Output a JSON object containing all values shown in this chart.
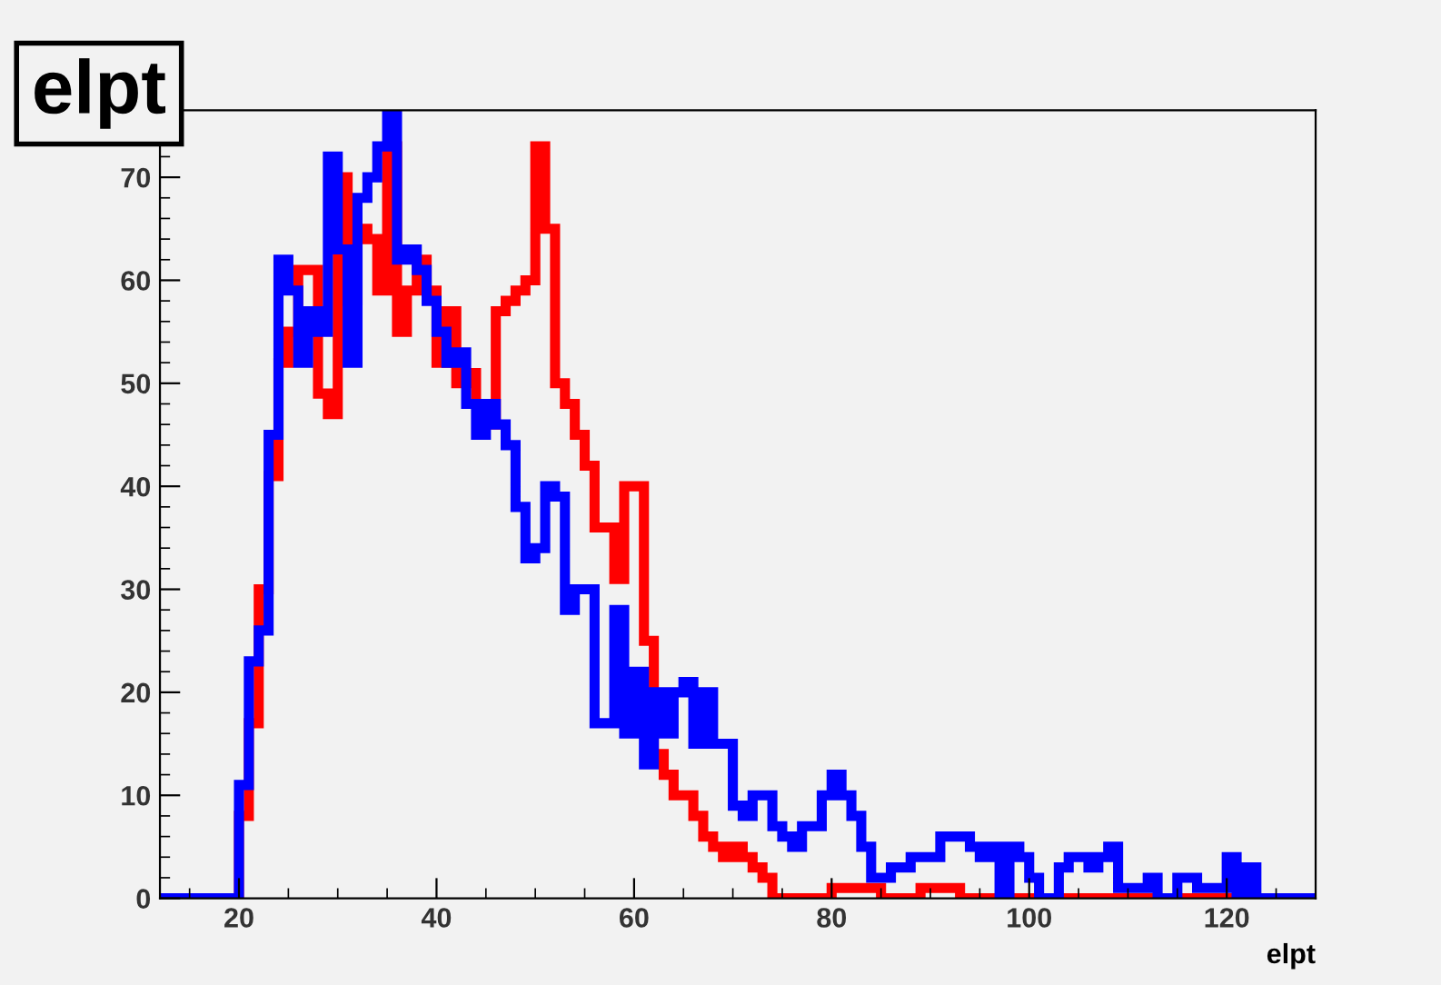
{
  "chart_data": {
    "type": "histogram",
    "title": "elpt",
    "xlabel": "elpt",
    "bins": [
      12,
      13,
      14,
      15,
      16,
      17,
      18,
      19,
      20,
      21,
      22,
      23,
      24,
      25,
      26,
      27,
      28,
      29,
      30,
      31,
      32,
      33,
      34,
      35,
      36,
      37,
      38,
      39,
      40,
      41,
      42,
      43,
      44,
      45,
      46,
      47,
      48,
      49,
      50,
      51,
      52,
      53,
      54,
      55,
      56,
      57,
      58,
      59,
      60,
      61,
      62,
      63,
      64,
      65,
      66,
      67,
      68,
      69,
      70,
      71,
      72,
      73,
      74,
      75,
      76,
      77,
      78,
      79,
      80,
      81,
      82,
      83,
      84,
      85,
      86,
      87,
      88,
      89,
      90,
      91,
      92,
      93,
      94,
      95,
      96,
      97,
      98,
      99,
      100,
      101,
      102,
      103,
      104,
      105,
      106,
      107,
      108,
      109,
      110,
      111,
      112,
      113,
      114,
      115,
      116,
      117,
      118,
      119,
      120,
      121,
      122,
      123,
      124,
      125,
      126,
      127,
      128,
      129
    ],
    "series": [
      {
        "color": "#ff0000",
        "values": [
          0,
          0,
          0,
          0,
          0,
          0,
          0,
          0,
          8,
          17,
          30,
          41,
          52,
          55,
          61,
          61,
          49,
          47,
          70,
          58,
          65,
          64,
          59,
          73,
          55,
          59,
          62,
          59,
          52,
          57,
          50,
          51,
          48,
          46,
          57,
          58,
          59,
          60,
          73,
          65,
          50,
          48,
          45,
          42,
          36,
          36,
          31,
          40,
          40,
          25,
          14,
          12,
          10,
          10,
          8,
          6,
          5,
          4,
          5,
          4,
          3,
          2,
          0,
          0,
          0,
          0,
          0,
          0,
          1,
          1,
          1,
          1,
          1,
          0,
          0,
          0,
          0,
          1,
          1,
          1,
          1,
          0,
          0,
          0,
          0,
          0,
          0,
          0,
          0,
          0,
          0,
          0,
          0,
          0,
          0,
          0,
          0,
          0,
          0,
          0,
          0,
          0,
          0,
          0,
          0,
          0,
          0,
          0,
          0,
          0,
          0,
          0,
          0,
          0,
          0,
          0,
          0
        ]
      },
      {
        "color": "#0000ff",
        "values": [
          0,
          0,
          0,
          0,
          0,
          0,
          0,
          0,
          11,
          23,
          26,
          45,
          62,
          59,
          52,
          57,
          55,
          72,
          63,
          52,
          68,
          70,
          73,
          76,
          62,
          63,
          61,
          58,
          55,
          52,
          53,
          48,
          45,
          48,
          46,
          44,
          38,
          33,
          34,
          40,
          39,
          28,
          30,
          30,
          17,
          17,
          28,
          16,
          22,
          13,
          20,
          16,
          20,
          21,
          15,
          20,
          15,
          15,
          9,
          8,
          10,
          10,
          7,
          6,
          5,
          7,
          7,
          10,
          12,
          10,
          8,
          5,
          2,
          2,
          3,
          3,
          4,
          4,
          4,
          6,
          6,
          6,
          5,
          4,
          5,
          0,
          5,
          4,
          2,
          0,
          0,
          3,
          4,
          4,
          3,
          4,
          5,
          1,
          1,
          1,
          2,
          0,
          0,
          2,
          2,
          1,
          1,
          1,
          4,
          0,
          3,
          0,
          0,
          0,
          0,
          0,
          0
        ]
      }
    ],
    "xlim": [
      12,
      129
    ],
    "ylim": [
      0,
      76.5
    ],
    "xticks": [
      20,
      40,
      60,
      80,
      100,
      120
    ],
    "yticks": [
      0,
      10,
      20,
      30,
      40,
      50,
      60,
      70
    ],
    "grid": false,
    "legend": false
  }
}
